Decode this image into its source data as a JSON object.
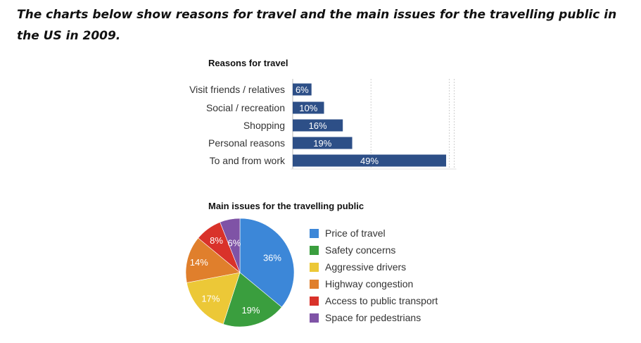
{
  "page_title": "The charts below show reasons for travel and the main issues for the travelling public in the US in 2009.",
  "chart_data": [
    {
      "type": "bar",
      "orientation": "horizontal",
      "title": "Reasons for travel",
      "categories": [
        "Visit friends / relatives",
        "Social / recreation",
        "Shopping",
        "Personal reasons",
        "To and from work"
      ],
      "values": [
        6,
        10,
        16,
        19,
        49
      ],
      "value_labels": [
        "6%",
        "10%",
        "16%",
        "19%",
        "49%"
      ],
      "color": "#2d4f87",
      "xlim": [
        0,
        50
      ],
      "grid": true,
      "xlabel": "",
      "ylabel": ""
    },
    {
      "type": "pie",
      "title": "Main issues for the travelling public",
      "labels": [
        "Price of travel",
        "Safety concerns",
        "Aggressive drivers",
        "Highway congestion",
        "Access to public transport",
        "Space for pedestrians"
      ],
      "values": [
        36,
        19,
        17,
        14,
        8,
        6
      ],
      "value_labels": [
        "36%",
        "19%",
        "17%",
        "14%",
        "8%",
        "6%"
      ],
      "colors": [
        "#3c87d8",
        "#3a9e3e",
        "#ecc837",
        "#e07f2c",
        "#d9322a",
        "#7f53a6"
      ],
      "legend_position": "right"
    }
  ]
}
